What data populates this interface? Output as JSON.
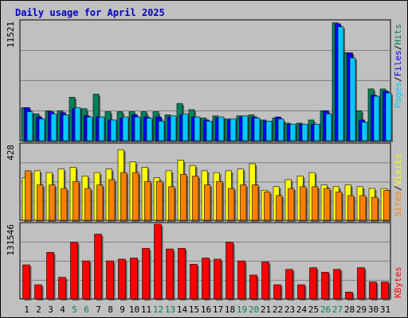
{
  "title": "Daily usage for April 2025",
  "colors": {
    "background": "#c0c0c0",
    "hits": "#00805c",
    "files": "#0000ff",
    "pages": "#00c8ff",
    "visits": "#ffff00",
    "sites": "#ff8000",
    "kbytes": "#ff0000",
    "weekend_label": "#00805c",
    "weekday_label": "#000000"
  },
  "days": [
    "1",
    "2",
    "3",
    "4",
    "5",
    "6",
    "7",
    "8",
    "9",
    "10",
    "11",
    "12",
    "13",
    "14",
    "15",
    "16",
    "17",
    "18",
    "19",
    "20",
    "21",
    "22",
    "23",
    "24",
    "25",
    "26",
    "27",
    "28",
    "29",
    "30",
    "31"
  ],
  "weekend_days": [
    "5",
    "6",
    "12",
    "13",
    "19",
    "20",
    "26",
    "27"
  ],
  "chart_data": [
    {
      "type": "bar",
      "ymax_label": "11521",
      "ylim": [
        0,
        11521
      ],
      "legend": {
        "pages": "Pages",
        "files": "Files",
        "hits": "Hits",
        "sep": "/"
      },
      "series": [
        {
          "name": "Hits",
          "values": [
            3200,
            2600,
            2900,
            2900,
            4200,
            3100,
            4500,
            2800,
            2800,
            2800,
            2800,
            2800,
            2500,
            3600,
            3000,
            2200,
            2400,
            2100,
            2400,
            2500,
            2000,
            2200,
            1700,
            1700,
            2000,
            2900,
            11400,
            8500,
            2900,
            5000,
            5000
          ]
        },
        {
          "name": "Files",
          "values": [
            3200,
            2300,
            2800,
            2700,
            3100,
            2400,
            2300,
            2000,
            2200,
            2500,
            2300,
            2300,
            2300,
            2500,
            2300,
            2000,
            2200,
            2000,
            2300,
            2300,
            1900,
            2300,
            1600,
            1600,
            1600,
            2900,
            11300,
            8500,
            2000,
            4400,
            4800
          ]
        },
        {
          "name": "Pages",
          "values": [
            2800,
            2100,
            2600,
            2500,
            3200,
            2300,
            2300,
            2000,
            2300,
            2300,
            2200,
            1900,
            2400,
            2600,
            2300,
            1900,
            2300,
            2100,
            2400,
            2200,
            1900,
            2100,
            1600,
            1600,
            1600,
            2600,
            11000,
            8000,
            1800,
            4300,
            4600
          ]
        }
      ]
    },
    {
      "type": "bar",
      "ymax_label": "428",
      "ylim": [
        0,
        428
      ],
      "legend": {
        "sites": "Sites",
        "visits": "Visits",
        "sep": "/"
      },
      "series": [
        {
          "name": "Visits",
          "values": [
            240,
            280,
            270,
            290,
            300,
            250,
            270,
            290,
            400,
            330,
            300,
            240,
            280,
            340,
            310,
            280,
            270,
            280,
            290,
            320,
            170,
            190,
            230,
            250,
            270,
            200,
            190,
            200,
            190,
            180,
            180
          ]
        },
        {
          "name": "Sites",
          "values": [
            280,
            200,
            200,
            180,
            220,
            180,
            200,
            230,
            270,
            270,
            220,
            220,
            190,
            260,
            250,
            200,
            220,
            180,
            200,
            200,
            160,
            140,
            180,
            190,
            190,
            180,
            160,
            140,
            140,
            130,
            170
          ]
        }
      ]
    },
    {
      "type": "bar",
      "ymax_label": "131546",
      "ylim": [
        0,
        131546
      ],
      "legend": {
        "kbytes": "KBytes"
      },
      "series": [
        {
          "name": "KBytes",
          "values": [
            60000,
            25000,
            82000,
            38000,
            100000,
            67000,
            114000,
            67000,
            70000,
            72000,
            89000,
            138000,
            88000,
            89000,
            61000,
            72000,
            70000,
            100000,
            67000,
            42000,
            65000,
            25000,
            52000,
            25000,
            55000,
            47000,
            52000,
            12000,
            55000,
            30000,
            30000
          ]
        }
      ]
    }
  ]
}
